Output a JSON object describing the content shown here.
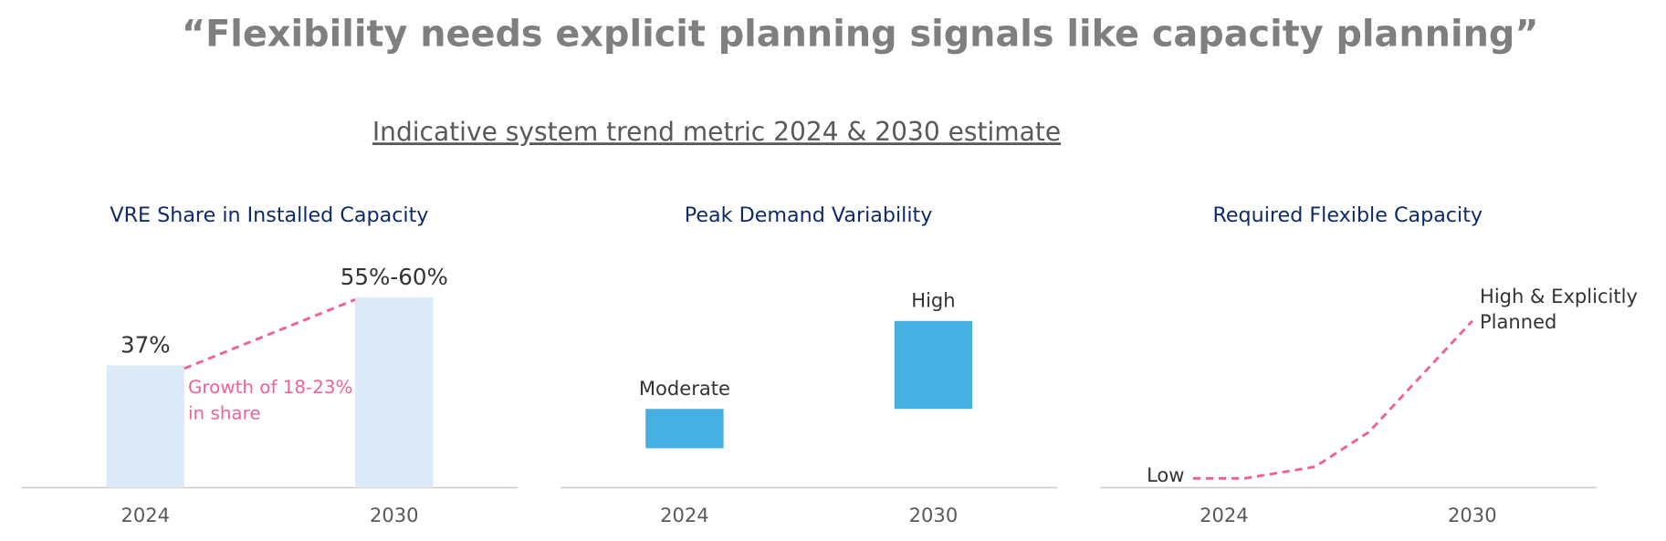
{
  "title": "“Flexibility needs explicit planning signals like capacity planning”",
  "subtitle": "Indicative system trend metric 2024 & 2030 estimate",
  "chart_data": [
    {
      "type": "bar",
      "title": "VRE Share in Installed Capacity",
      "categories": [
        "2024",
        "2030"
      ],
      "values": [
        37,
        57.5
      ],
      "value_labels": [
        "37%",
        "55%-60%"
      ],
      "color": "#dce9f6",
      "connector_color": "#f0609a",
      "annotation": [
        "Growth of 18-23%",
        "in share"
      ],
      "ylim": [
        0,
        70
      ]
    },
    {
      "type": "floating_bar",
      "title": "Peak Demand Variability",
      "categories": [
        "2024",
        "2030"
      ],
      "values": [
        [
          17,
          34
        ],
        [
          34,
          72
        ]
      ],
      "value_labels": [
        "Moderate",
        "High"
      ],
      "color": "#45b0e1",
      "ylim": [
        0,
        100
      ]
    },
    {
      "type": "line",
      "title": "Required Flexible Capacity",
      "x": [
        2023.25,
        2024.5,
        2026.2,
        2027.5,
        2030
      ],
      "values": [
        4,
        4,
        9,
        24,
        72
      ],
      "value_labels": [
        [
          "Low"
        ],
        null,
        null,
        null,
        [
          "High & Explicitly",
          "Planned"
        ]
      ],
      "color": "#f0609a",
      "xlim": [
        2021,
        2033
      ],
      "xticks": [
        2024,
        2030
      ],
      "ylim": [
        0,
        100
      ]
    }
  ]
}
